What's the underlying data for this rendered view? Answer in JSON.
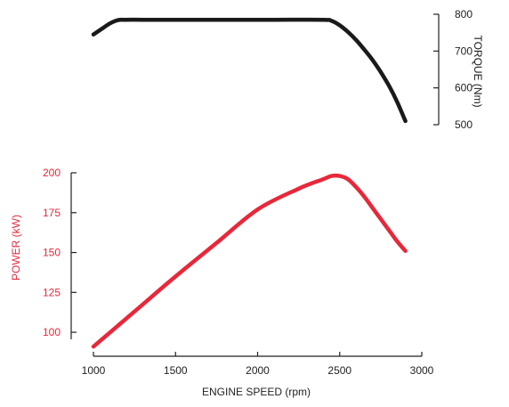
{
  "chart_data": [
    {
      "type": "line",
      "ylabel": "TORQUE (Nm)",
      "ylim": [
        500,
        800
      ],
      "yticks": [
        500,
        600,
        700,
        800
      ],
      "axis_side": "right",
      "color": "#1a1a1a",
      "series": [
        {
          "x": [
            1000,
            1050,
            1100,
            1150,
            1200,
            1300,
            1500,
            1800,
            2100,
            2400,
            2450,
            2500,
            2550,
            2600,
            2650,
            2700,
            2750,
            2800,
            2850,
            2900
          ],
          "y": [
            745,
            760,
            775,
            784,
            785,
            785,
            785,
            785,
            785,
            785,
            782,
            770,
            752,
            730,
            704,
            676,
            643,
            606,
            562,
            510
          ]
        }
      ]
    },
    {
      "type": "line",
      "xlabel": "ENGINE SPEED (rpm)",
      "ylabel": "POWER (kW)",
      "xlim": [
        1000,
        3000
      ],
      "ylim": [
        90,
        200
      ],
      "xticks": [
        1000,
        1500,
        2000,
        2500,
        3000
      ],
      "yticks": [
        100,
        125,
        150,
        175,
        200
      ],
      "axis_side": "left",
      "color": "#e8283a",
      "series": [
        {
          "x": [
            1000,
            1250,
            1500,
            1750,
            2000,
            2250,
            2400,
            2450,
            2500,
            2550,
            2600,
            2650,
            2700,
            2750,
            2800,
            2850,
            2900
          ],
          "y": [
            91,
            113,
            135,
            156,
            177,
            190,
            196,
            198,
            198,
            196,
            191,
            185,
            178,
            171,
            164,
            157,
            151
          ]
        }
      ]
    }
  ]
}
